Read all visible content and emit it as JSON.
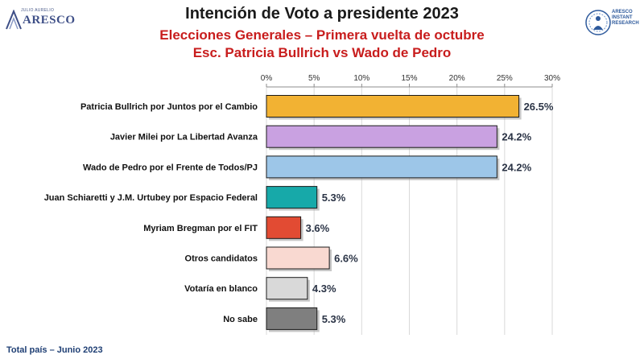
{
  "header": {
    "title": "Intención de Voto a presidente 2023",
    "subtitle_1": "Elecciones Generales – Primera vuelta de octubre",
    "subtitle_2": "Esc. Patricia Bullrich vs Wado de Pedro"
  },
  "logo_left": {
    "small_text": "JULIO AURELIO",
    "brand": "ARESCO"
  },
  "logo_right": {
    "lines": [
      "ARESCO",
      "INSTANT",
      "RESEARCH"
    ]
  },
  "footer": {
    "text": "Total país – Junio 2023"
  },
  "chart_data": {
    "type": "bar",
    "orientation": "horizontal",
    "categories": [
      "Patricia Bullrich por Juntos por el Cambio",
      "Javier Milei por La Libertad Avanza",
      "Wado de Pedro por el Frente de Todos/PJ",
      "Juan Schiaretti y J.M. Urtubey por Espacio Federal",
      "Myriam Bregman por el FIT",
      "Otros candidatos",
      "Votaría en blanco",
      "No sabe"
    ],
    "values": [
      26.5,
      24.2,
      24.2,
      5.3,
      3.6,
      6.6,
      4.3,
      5.3
    ],
    "value_labels": [
      "26.5%",
      "24.2%",
      "24.2%",
      "5.3%",
      "3.6%",
      "6.6%",
      "4.3%",
      "5.3%"
    ],
    "colors": [
      "#f2b233",
      "#c9a1e1",
      "#9dc6e8",
      "#17a9a9",
      "#e24b33",
      "#f9d9d1",
      "#d9d9d9",
      "#7f7f7f"
    ],
    "x_ticks": [
      "0%",
      "5%",
      "10%",
      "15%",
      "20%",
      "25%",
      "30%"
    ],
    "x_tick_values": [
      0,
      5,
      10,
      15,
      20,
      25,
      30
    ],
    "xlim": [
      0,
      30
    ],
    "x_axis_position": "top",
    "gridlines": true
  }
}
